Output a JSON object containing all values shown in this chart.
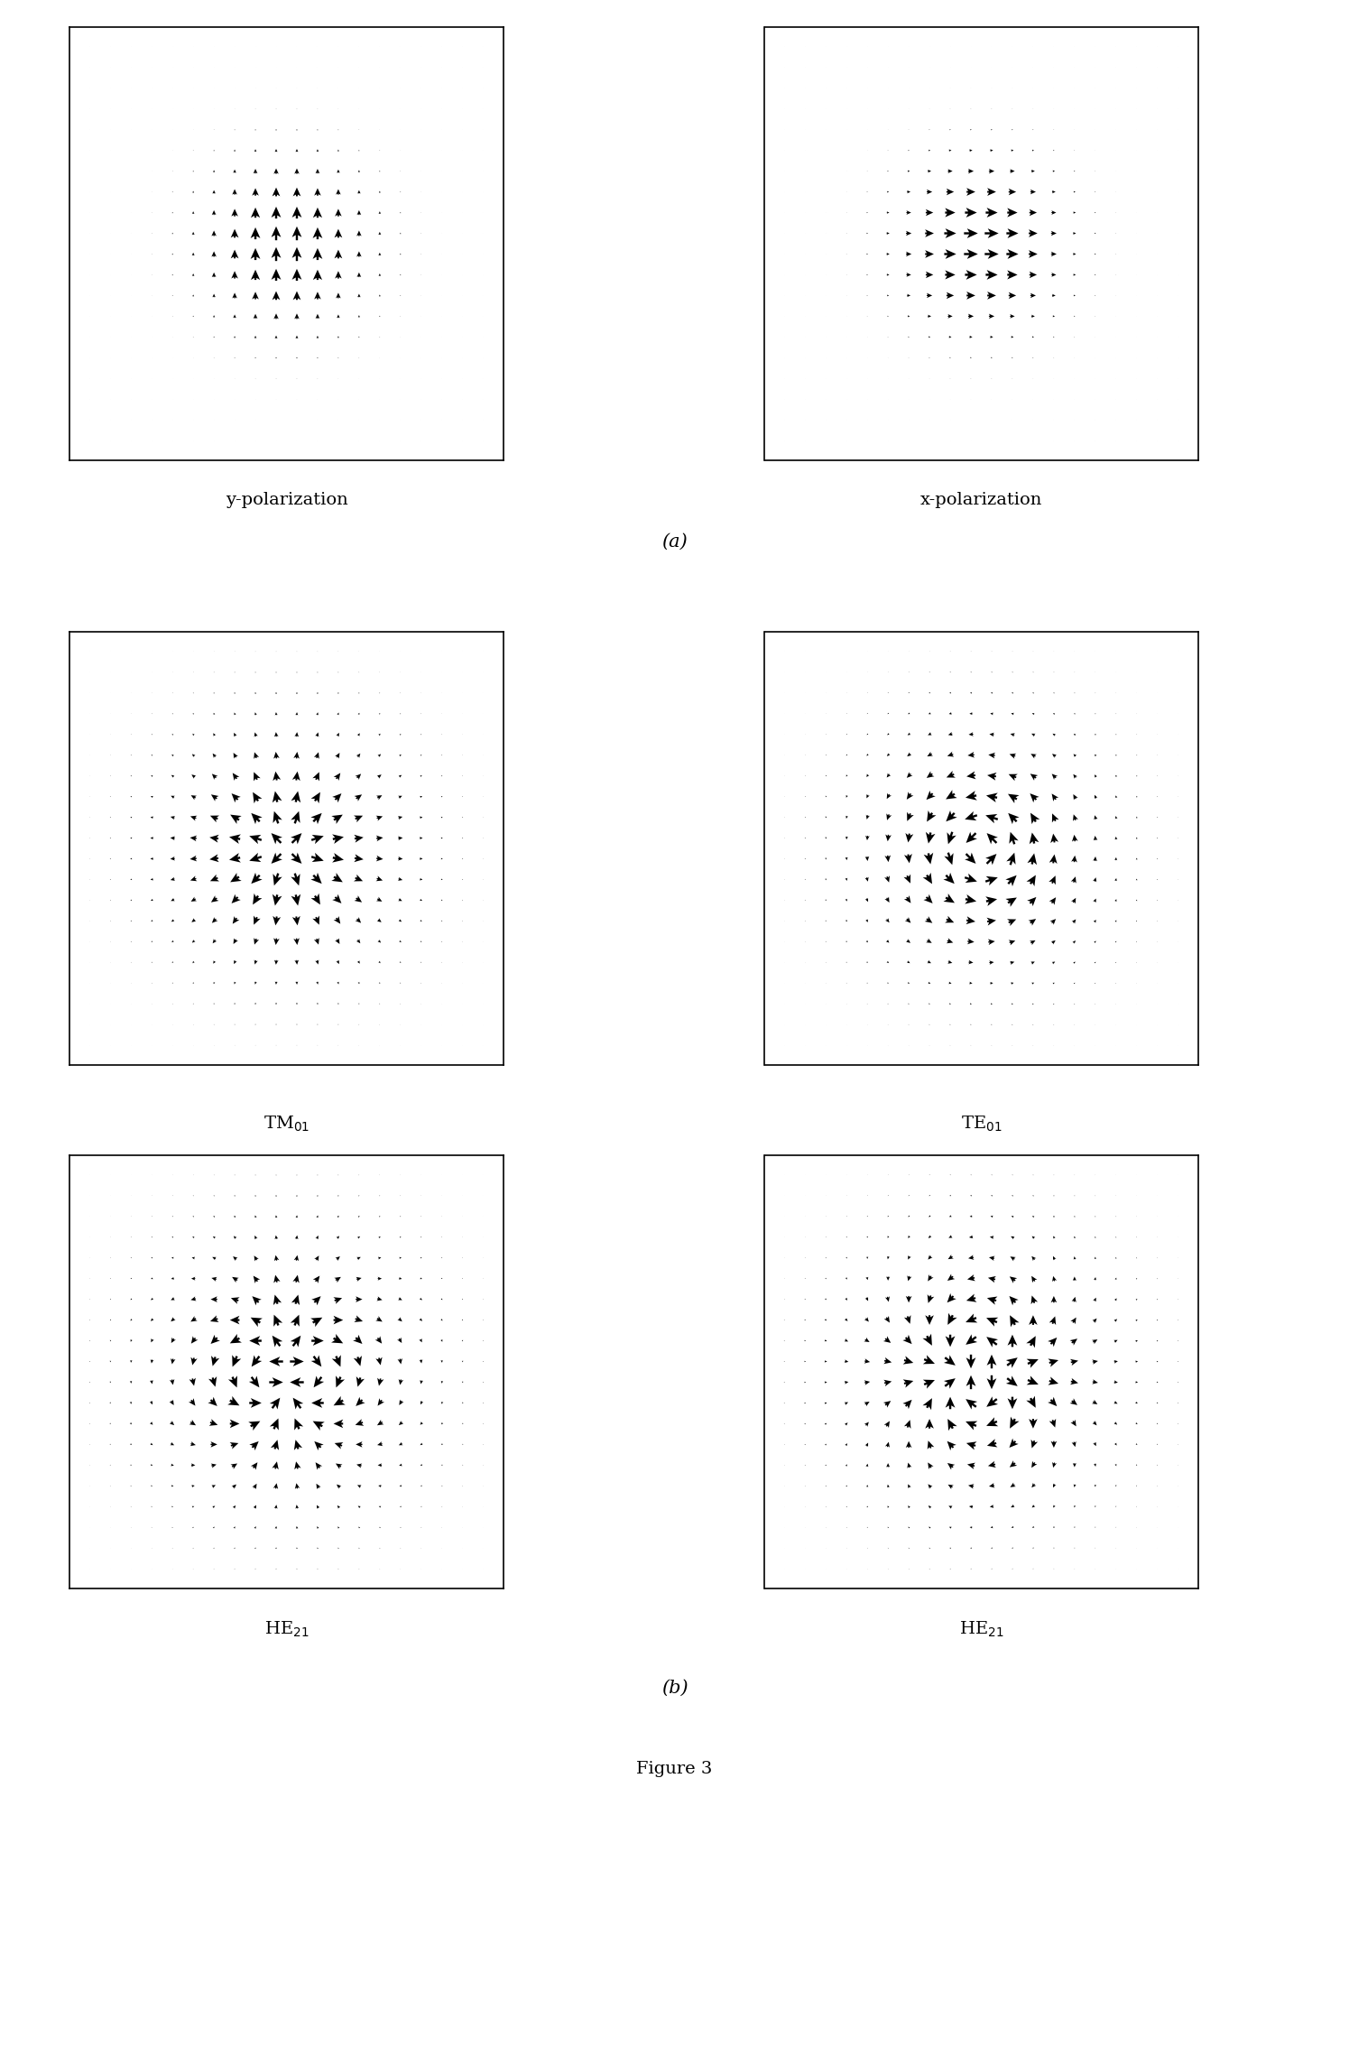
{
  "background_color": "#ffffff",
  "grid_n": 20,
  "arrow_color": "#000000",
  "title": "Figure 3",
  "label_a": "(a)",
  "label_b": "(b)",
  "panel_labels": [
    "y-polarization",
    "x-polarization",
    "TM$_{01}$",
    "TE$_{01}$",
    "HE$_{21}$",
    "HE$_{21}$"
  ],
  "box_color": "#000000",
  "label_fontsize": 14,
  "title_fontsize": 14
}
